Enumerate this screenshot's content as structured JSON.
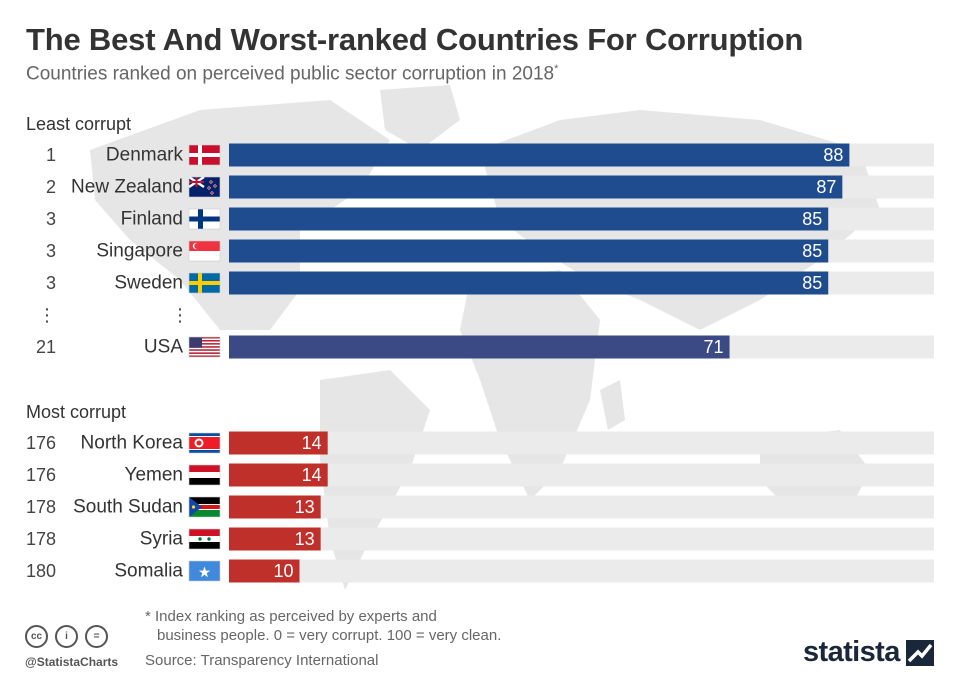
{
  "title": "The Best And Worst-ranked Countries For Corruption",
  "subtitle": "Countries ranked on perceived public sector corruption in 2018",
  "subtitle_mark": "*",
  "footnote_line1": "* Index ranking as perceived by experts and",
  "footnote_line2": "business people. 0 = very corrupt. 100 = very clean.",
  "source": "Source: Transparency International",
  "handle": "@StatistaCharts",
  "brand": "statista",
  "colors": {
    "least": "#1f4c8f",
    "usa": "#3b4a84",
    "most": "#c0302b",
    "track": "#ebebeb",
    "map": "#e3e3e3"
  },
  "chart_data": {
    "type": "bar",
    "orientation": "horizontal",
    "xlim": [
      0,
      100
    ],
    "groups": [
      {
        "label": "Least corrupt",
        "rows": [
          {
            "rank": "1",
            "country": "Denmark",
            "value": 88,
            "flag": "denmark-flag-icon"
          },
          {
            "rank": "2",
            "country": "New Zealand",
            "value": 87,
            "flag": "new-zealand-flag-icon"
          },
          {
            "rank": "3",
            "country": "Finland",
            "value": 85,
            "flag": "finland-flag-icon"
          },
          {
            "rank": "3",
            "country": "Singapore",
            "value": 85,
            "flag": "singapore-flag-icon"
          },
          {
            "rank": "3",
            "country": "Sweden",
            "value": 85,
            "flag": "sweden-flag-icon"
          },
          {
            "rank": "⋮",
            "country": "⋮",
            "value": null,
            "flag": null
          },
          {
            "rank": "21",
            "country": "USA",
            "value": 71,
            "flag": "usa-flag-icon"
          }
        ]
      },
      {
        "label": "Most corrupt",
        "rows": [
          {
            "rank": "176",
            "country": "North Korea",
            "value": 14,
            "flag": "north-korea-flag-icon"
          },
          {
            "rank": "176",
            "country": "Yemen",
            "value": 14,
            "flag": "yemen-flag-icon"
          },
          {
            "rank": "178",
            "country": "South Sudan",
            "value": 13,
            "flag": "south-sudan-flag-icon"
          },
          {
            "rank": "178",
            "country": "Syria",
            "value": 13,
            "flag": "syria-flag-icon"
          },
          {
            "rank": "180",
            "country": "Somalia",
            "value": 10,
            "flag": "somalia-flag-icon"
          }
        ]
      }
    ]
  }
}
